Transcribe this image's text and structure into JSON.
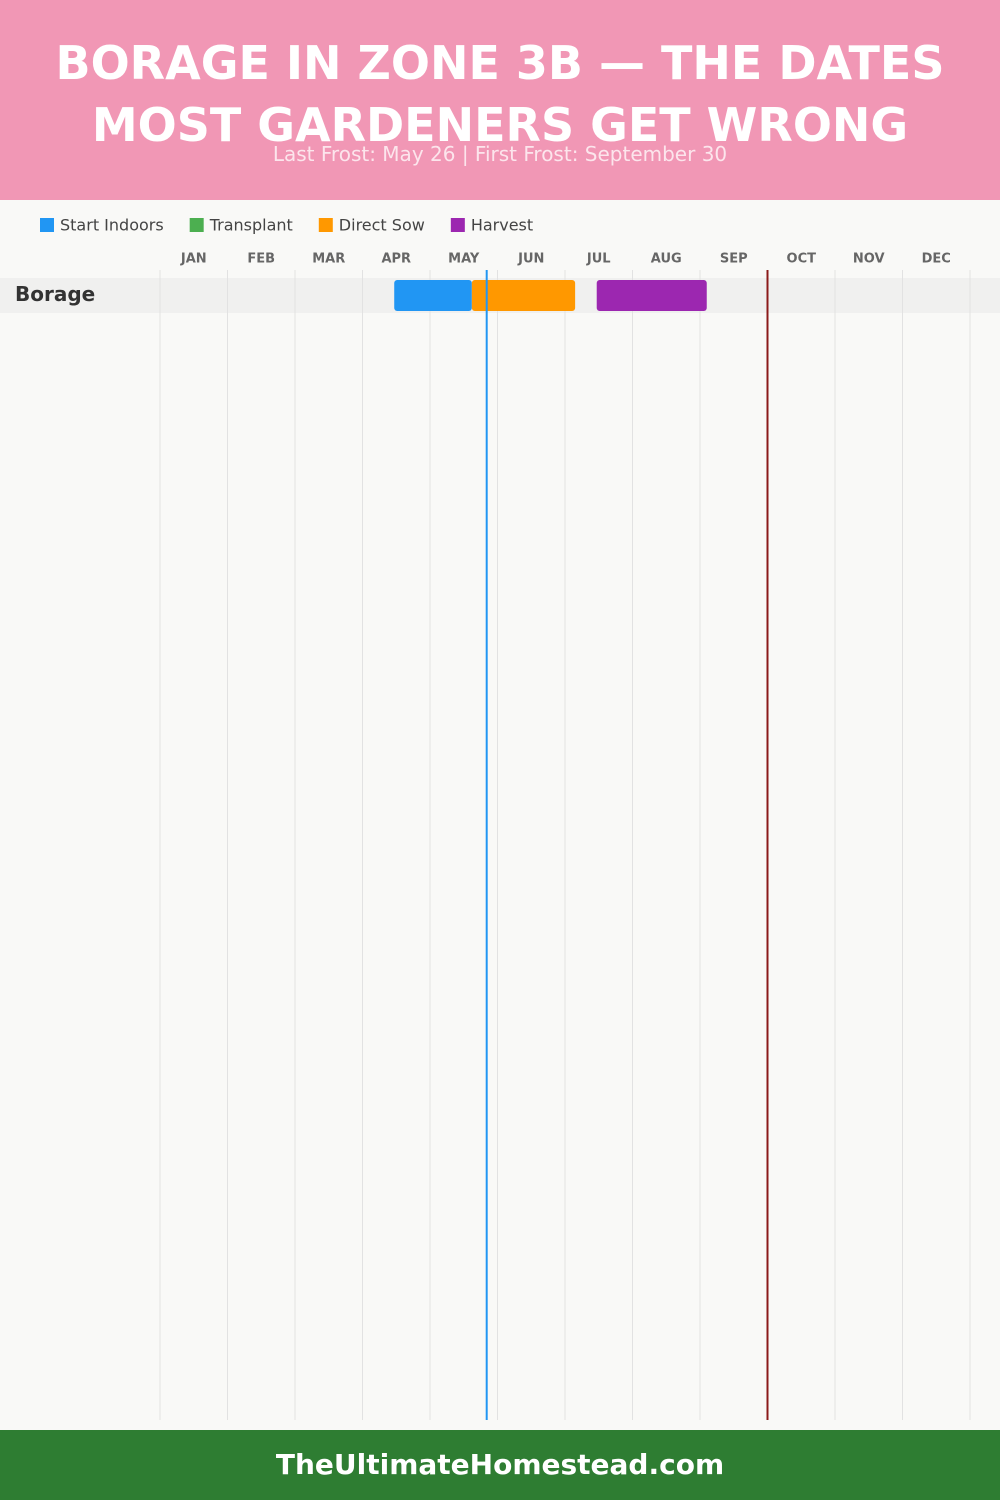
{
  "chart_data": {
    "type": "gantt",
    "title": "BORAGE IN ZONE 3B — THE DATES MOST GARDENERS GET WRONG",
    "subtitle": "Last Frost: May 26 | First Frost: September 30",
    "categories": [
      "Borage"
    ],
    "series": [
      {
        "name": "Start Indoors",
        "color": "#2196f3",
        "values": [
          [
            3.47,
            4.62
          ]
        ]
      },
      {
        "name": "Transplant",
        "color": "#4caf50",
        "values": [
          null
        ]
      },
      {
        "name": "Direct Sow",
        "color": "#ff9800",
        "values": [
          [
            4.62,
            6.15
          ]
        ]
      },
      {
        "name": "Harvest",
        "color": "#9c27b0",
        "values": [
          [
            6.47,
            8.1
          ]
        ]
      }
    ],
    "markers": [
      {
        "value": 4.84,
        "color": "#2196f3"
      },
      {
        "value": 9.0,
        "color": "#8b1a1a"
      }
    ],
    "xlim": [
      0,
      12
    ],
    "xticks": [
      {
        "value": 0.5,
        "label": "JAN"
      },
      {
        "value": 1.5,
        "label": "FEB"
      },
      {
        "value": 2.5,
        "label": "MAR"
      },
      {
        "value": 3.5,
        "label": "APR"
      },
      {
        "value": 4.5,
        "label": "MAY"
      },
      {
        "value": 5.5,
        "label": "JUN"
      },
      {
        "value": 6.5,
        "label": "JUL"
      },
      {
        "value": 7.5,
        "label": "AUG"
      },
      {
        "value": 8.5,
        "label": "SEP"
      },
      {
        "value": 9.5,
        "label": "OCT"
      },
      {
        "value": 10.5,
        "label": "NOV"
      },
      {
        "value": 11.5,
        "label": "DEC"
      }
    ],
    "grid": true
  },
  "footer": "TheUltimateHomestead.com"
}
